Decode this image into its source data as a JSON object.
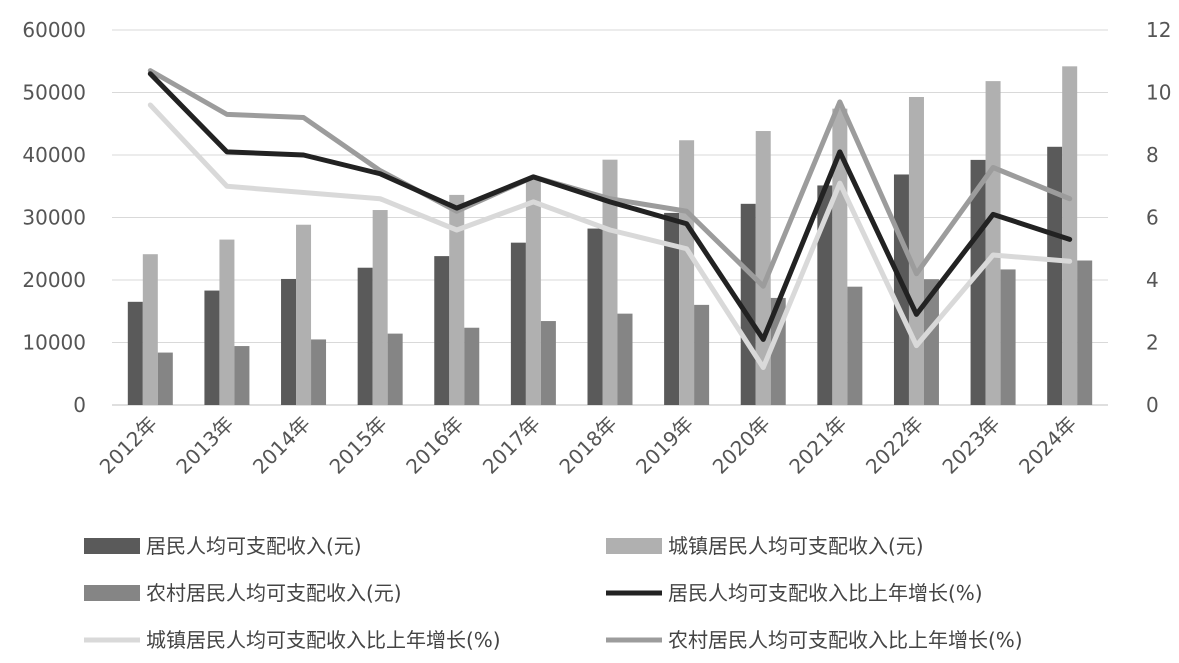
{
  "chart_data": {
    "type": "bar",
    "categories": [
      "2012年",
      "2013年",
      "2014年",
      "2015年",
      "2016年",
      "2017年",
      "2018年",
      "2019年",
      "2020年",
      "2021年",
      "2022年",
      "2023年",
      "2024年"
    ],
    "ylim_left": [
      0,
      60000
    ],
    "yticks_left": [
      "0",
      "10000",
      "20000",
      "30000",
      "40000",
      "50000",
      "60000"
    ],
    "ylim_right": [
      0,
      12
    ],
    "yticks_right": [
      "0",
      "2",
      "4",
      "6",
      "8",
      "10",
      "12"
    ],
    "grid": true,
    "legend_position": "bottom",
    "series": [
      {
        "name": "居民人均可支配收入(元)",
        "kind": "bar",
        "axis": "left",
        "color": "#5a5a5a",
        "values": [
          16510,
          18311,
          20167,
          21966,
          23821,
          25974,
          28228,
          30733,
          32189,
          35128,
          36883,
          39218,
          41314
        ]
      },
      {
        "name": "城镇居民人均可支配收入(元)",
        "kind": "bar",
        "axis": "left",
        "color": "#b0b0b0",
        "values": [
          24127,
          26467,
          28844,
          31195,
          33616,
          36396,
          39251,
          42359,
          43834,
          47412,
          49283,
          51821,
          54188
        ]
      },
      {
        "name": "农村居民人均可支配收入(元)",
        "kind": "bar",
        "axis": "left",
        "color": "#858585",
        "values": [
          8389,
          9430,
          10489,
          11422,
          12363,
          13432,
          14617,
          16021,
          17131,
          18931,
          20133,
          21691,
          23119
        ]
      },
      {
        "name": "居民人均可支配收入比上年增长(%)",
        "kind": "line",
        "axis": "right",
        "color": "#222222",
        "values": [
          10.6,
          8.1,
          8.0,
          7.4,
          6.3,
          7.3,
          6.5,
          5.8,
          2.1,
          8.1,
          2.9,
          6.1,
          5.3
        ]
      },
      {
        "name": "城镇居民人均可支配收入比上年增长(%)",
        "kind": "line",
        "axis": "right",
        "color": "#d9d9d9",
        "values": [
          9.6,
          7.0,
          6.8,
          6.6,
          5.6,
          6.5,
          5.6,
          5.0,
          1.2,
          7.1,
          1.9,
          4.8,
          4.6
        ]
      },
      {
        "name": "农村居民人均可支配收入比上年增长(%)",
        "kind": "line",
        "axis": "right",
        "color": "#9c9c9c",
        "values": [
          10.7,
          9.3,
          9.2,
          7.5,
          6.2,
          7.3,
          6.6,
          6.2,
          3.8,
          9.7,
          4.2,
          7.6,
          6.6
        ]
      }
    ]
  }
}
